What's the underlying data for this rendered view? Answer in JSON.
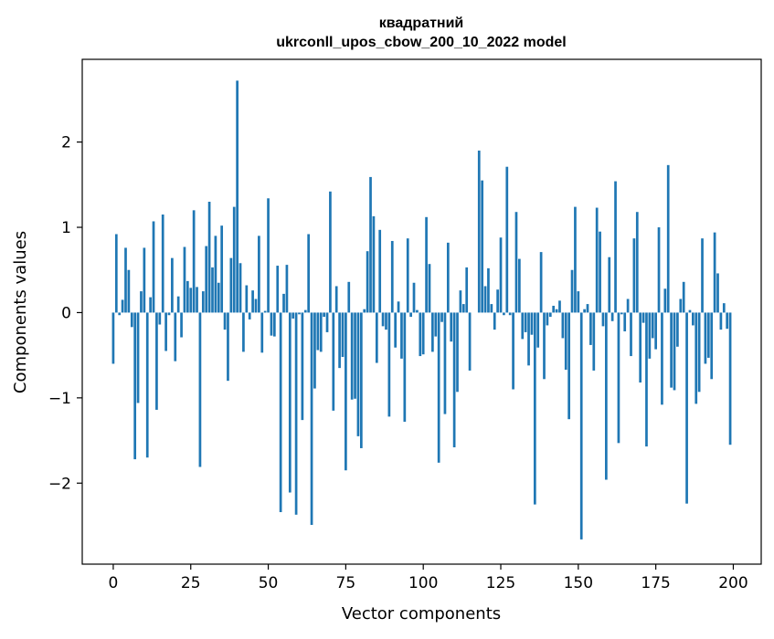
{
  "chart_data": {
    "type": "bar",
    "title_lines": [
      "квадратний",
      "ukrconll_upos_cbow_200_10_2022 model"
    ],
    "xlabel": "Vector components",
    "ylabel": "Components values",
    "xlim": [
      -10,
      209
    ],
    "ylim": [
      -2.95,
      2.97
    ],
    "x_ticks": [
      0,
      25,
      50,
      75,
      100,
      125,
      150,
      175,
      200
    ],
    "x_tick_labels": [
      "0",
      "25",
      "50",
      "75",
      "100",
      "125",
      "150",
      "175",
      "200"
    ],
    "y_ticks": [
      -2,
      -1,
      0,
      1,
      2
    ],
    "y_tick_labels": [
      "−2",
      "−1",
      "0",
      "1",
      "2"
    ],
    "bar_color": "#1f77b4",
    "grid": false,
    "legend": null,
    "values": [
      -0.6,
      0.92,
      -0.03,
      0.15,
      0.76,
      0.5,
      -0.17,
      -1.72,
      -1.06,
      0.25,
      0.76,
      -1.7,
      0.18,
      1.07,
      -1.14,
      -0.14,
      1.15,
      -0.45,
      -0.03,
      0.64,
      -0.57,
      0.19,
      -0.29,
      0.77,
      0.37,
      0.29,
      1.2,
      0.3,
      -1.81,
      0.25,
      0.78,
      1.3,
      0.53,
      0.9,
      0.35,
      1.02,
      -0.2,
      -0.8,
      0.64,
      1.24,
      2.72,
      0.58,
      -0.46,
      0.32,
      -0.08,
      0.26,
      0.16,
      0.9,
      -0.47,
      0.02,
      1.34,
      -0.27,
      -0.28,
      0.55,
      -2.34,
      0.22,
      0.56,
      -2.11,
      -0.07,
      -2.37,
      -0.02,
      -1.26,
      0.03,
      0.92,
      -2.49,
      -0.89,
      -0.44,
      -0.46,
      -0.05,
      -0.23,
      1.42,
      -1.15,
      0.31,
      -0.65,
      -0.52,
      -1.85,
      0.36,
      -1.02,
      -1.01,
      -1.45,
      -1.59,
      0.04,
      0.72,
      1.59,
      1.13,
      -0.59,
      0.97,
      -0.16,
      -0.2,
      -1.22,
      0.84,
      -0.41,
      0.13,
      -0.54,
      -1.28,
      0.87,
      -0.05,
      0.35,
      0.03,
      -0.51,
      -0.49,
      1.12,
      0.57,
      -0.46,
      -0.28,
      -1.76,
      -0.11,
      -1.19,
      0.82,
      -0.34,
      -1.58,
      -0.93,
      0.26,
      0.1,
      0.53,
      -0.68,
      0.0,
      0.0,
      1.9,
      1.55,
      0.31,
      0.52,
      0.1,
      -0.2,
      0.27,
      0.88,
      -0.03,
      1.71,
      -0.03,
      -0.9,
      1.18,
      0.63,
      -0.31,
      -0.23,
      -0.62,
      -0.26,
      -2.25,
      -0.41,
      0.71,
      -0.78,
      -0.15,
      -0.05,
      0.08,
      0.04,
      0.14,
      -0.3,
      -0.67,
      -1.25,
      0.5,
      1.24,
      0.25,
      -2.66,
      0.04,
      0.1,
      -0.38,
      -0.68,
      1.23,
      0.95,
      -0.16,
      -1.96,
      0.65,
      -0.1,
      1.54,
      -1.53,
      -0.02,
      -0.22,
      0.16,
      -0.51,
      0.87,
      1.18,
      -0.82,
      -0.12,
      -1.57,
      -0.54,
      -0.3,
      -0.43,
      1.0,
      -1.08,
      0.28,
      1.73,
      -0.88,
      -0.91,
      -0.4,
      0.16,
      0.36,
      -2.24,
      0.03,
      -0.15,
      -1.07,
      -0.93,
      0.87,
      -0.6,
      -0.53,
      -0.78,
      0.94,
      0.46,
      -0.2,
      0.11,
      -0.19,
      -1.55
    ]
  }
}
